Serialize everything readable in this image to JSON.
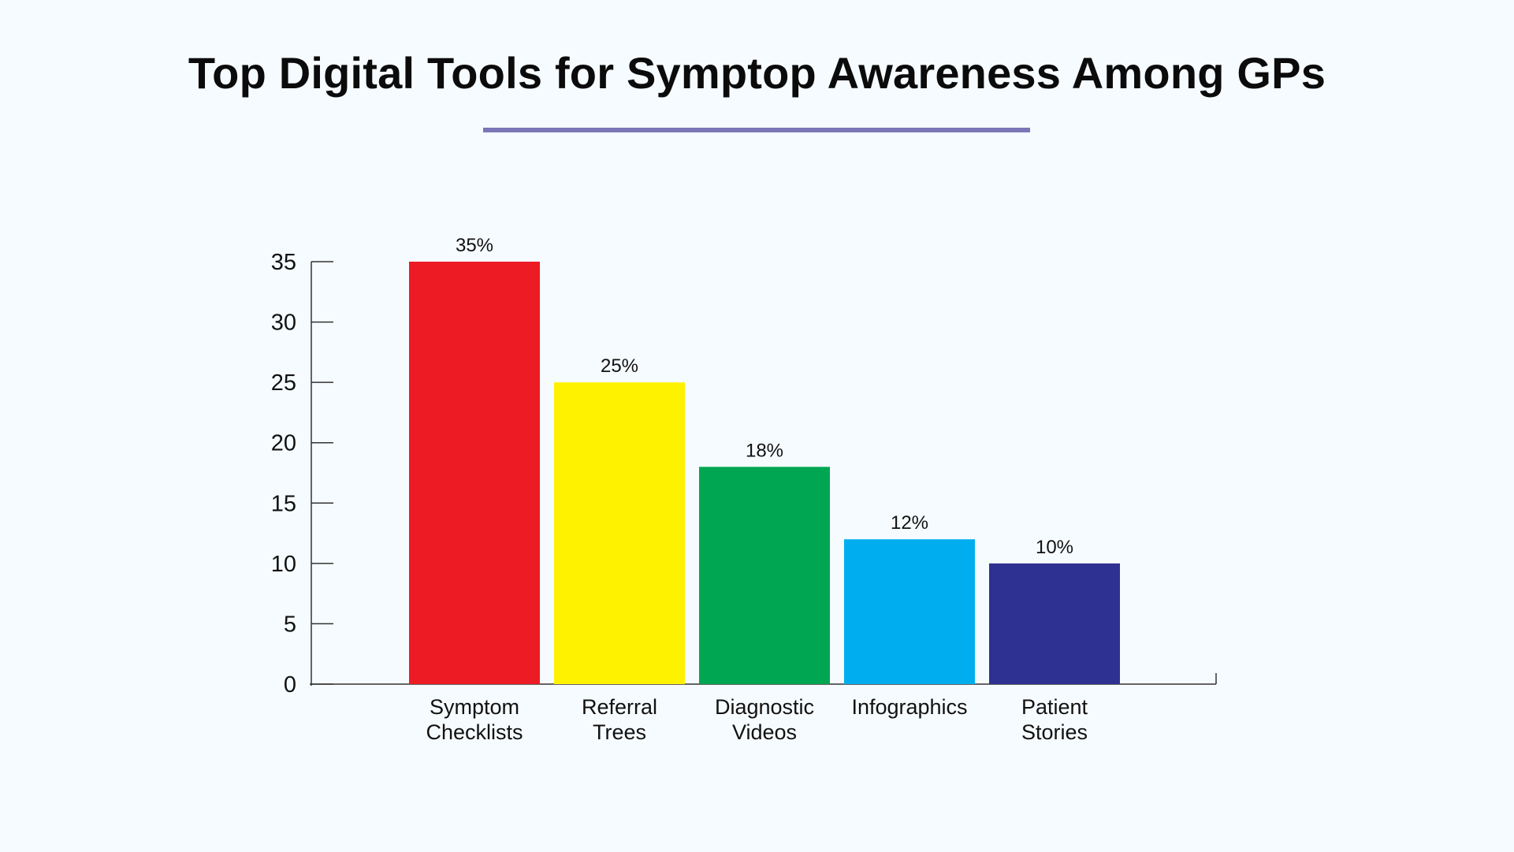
{
  "title": "Top Digital Tools for Symptop Awareness Among GPs",
  "chart_data": {
    "type": "bar",
    "categories": [
      [
        "Symptom",
        "Checklists"
      ],
      [
        "Referral",
        "Trees"
      ],
      [
        "Diagnostic",
        "Videos"
      ],
      [
        "Infographics"
      ],
      [
        "Patient",
        "Stories"
      ]
    ],
    "values": [
      35,
      25,
      18,
      12,
      10
    ],
    "data_labels": [
      "35%",
      "25%",
      "18%",
      "12%",
      "10%"
    ],
    "colors": [
      "#ed1c24",
      "#fff200",
      "#00a651",
      "#00aeef",
      "#2e3192"
    ],
    "yticks": [
      0,
      5,
      10,
      15,
      20,
      25,
      30,
      35
    ],
    "ylim": [
      0,
      35
    ],
    "grid": false,
    "title": "Top Digital Tools for Symptop Awareness Among GPs",
    "xlabel": "",
    "ylabel": ""
  }
}
